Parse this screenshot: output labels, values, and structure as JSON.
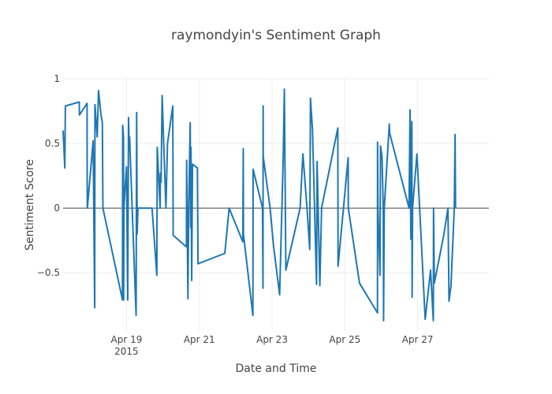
{
  "chart_data": {
    "type": "line",
    "title": "raymondyin's Sentiment Graph",
    "xlabel": "Date and Time",
    "ylabel": "Sentiment Score",
    "x_is_date": true,
    "xlim": [
      "2015-04-17T06:10",
      "2015-04-28T23:00"
    ],
    "ylim": [
      -0.95,
      1.0
    ],
    "x_ticks": [
      {
        "value": "2015-04-19T00:00",
        "label": "Apr 19",
        "sublabel": "2015"
      },
      {
        "value": "2015-04-21T00:00",
        "label": "Apr 21",
        "sublabel": ""
      },
      {
        "value": "2015-04-23T00:00",
        "label": "Apr 23",
        "sublabel": ""
      },
      {
        "value": "2015-04-25T00:00",
        "label": "Apr 25",
        "sublabel": ""
      },
      {
        "value": "2015-04-27T00:00",
        "label": "Apr 27",
        "sublabel": ""
      }
    ],
    "y_ticks": [
      {
        "value": 1,
        "label": "1"
      },
      {
        "value": 0.5,
        "label": "0.5"
      },
      {
        "value": 0,
        "label": "0"
      },
      {
        "value": -0.5,
        "label": "−0.5"
      }
    ],
    "grid": true,
    "series": [
      {
        "name": "",
        "color": "#1f77b4",
        "points": [
          [
            "2015-04-17T06:10",
            0.6
          ],
          [
            "2015-04-17T07:20",
            0.31
          ],
          [
            "2015-04-17T07:40",
            0.79
          ],
          [
            "2015-04-17T16:50",
            0.82
          ],
          [
            "2015-04-17T16:55",
            0.72
          ],
          [
            "2015-04-17T22:00",
            0.81
          ],
          [
            "2015-04-17T22:05",
            0.12
          ],
          [
            "2015-04-17T22:10",
            0.0
          ],
          [
            "2015-04-18T02:00",
            0.52
          ],
          [
            "2015-04-18T03:00",
            -0.77
          ],
          [
            "2015-04-18T03:10",
            0.8
          ],
          [
            "2015-04-18T04:40",
            0.55
          ],
          [
            "2015-04-18T05:30",
            0.91
          ],
          [
            "2015-04-18T07:10",
            0.72
          ],
          [
            "2015-04-18T08:05",
            0.66
          ],
          [
            "2015-04-18T08:25",
            0.0
          ],
          [
            "2015-04-18T21:20",
            -0.71
          ],
          [
            "2015-04-18T21:30",
            0.64
          ],
          [
            "2015-04-18T22:00",
            0.55
          ],
          [
            "2015-04-18T22:05",
            -0.71
          ],
          [
            "2015-04-18T22:20",
            0.0
          ],
          [
            "2015-04-18T23:00",
            0.14
          ],
          [
            "2015-04-19T00:00",
            0.32
          ],
          [
            "2015-04-19T00:50",
            -0.71
          ],
          [
            "2015-04-19T01:20",
            0.7
          ],
          [
            "2015-04-19T01:45",
            0.45
          ],
          [
            "2015-04-19T02:05",
            0.55
          ],
          [
            "2015-04-19T02:30",
            0.4
          ],
          [
            "2015-04-19T06:20",
            -0.83
          ],
          [
            "2015-04-19T06:40",
            0.74
          ],
          [
            "2015-04-19T07:00",
            -0.2
          ],
          [
            "2015-04-19T07:30",
            0.0
          ],
          [
            "2015-04-19T16:50",
            0.0
          ],
          [
            "2015-04-19T20:00",
            -0.52
          ],
          [
            "2015-04-19T20:15",
            0.47
          ],
          [
            "2015-04-19T22:10",
            0.0
          ],
          [
            "2015-04-19T22:20",
            0.27
          ],
          [
            "2015-04-19T22:50",
            0.2
          ],
          [
            "2015-04-19T23:30",
            0.87
          ],
          [
            "2015-04-20T02:00",
            0.0
          ],
          [
            "2015-04-20T03:00",
            0.5
          ],
          [
            "2015-04-20T06:30",
            0.79
          ],
          [
            "2015-04-20T06:45",
            -0.21
          ],
          [
            "2015-04-20T15:30",
            -0.3
          ],
          [
            "2015-04-20T15:40",
            0.37
          ],
          [
            "2015-04-20T16:30",
            -0.7
          ],
          [
            "2015-04-20T17:00",
            0.0
          ],
          [
            "2015-04-20T18:00",
            0.66
          ],
          [
            "2015-04-20T18:20",
            -0.15
          ],
          [
            "2015-04-20T18:30",
            0.47
          ],
          [
            "2015-04-20T19:00",
            -0.56
          ],
          [
            "2015-04-20T19:30",
            0.34
          ],
          [
            "2015-04-20T22:45",
            0.31
          ],
          [
            "2015-04-20T23:10",
            -0.43
          ],
          [
            "2015-04-21T16:50",
            -0.35
          ],
          [
            "2015-04-21T19:40",
            0.0
          ],
          [
            "2015-04-22T04:40",
            -0.26
          ],
          [
            "2015-04-22T05:00",
            0.46
          ],
          [
            "2015-04-22T05:05",
            -0.2
          ],
          [
            "2015-04-22T11:20",
            -0.83
          ],
          [
            "2015-04-22T11:30",
            0.3
          ],
          [
            "2015-04-22T17:40",
            0.0
          ],
          [
            "2015-04-22T18:00",
            -0.62
          ],
          [
            "2015-04-22T18:05",
            0.79
          ],
          [
            "2015-04-22T18:10",
            0.4
          ],
          [
            "2015-04-22T22:40",
            0.0
          ],
          [
            "2015-04-23T01:00",
            -0.3
          ],
          [
            "2015-04-23T05:00",
            -0.67
          ],
          [
            "2015-04-23T07:20",
            0.38
          ],
          [
            "2015-04-23T08:05",
            0.92
          ],
          [
            "2015-04-23T09:05",
            -0.48
          ],
          [
            "2015-04-23T18:30",
            0.0
          ],
          [
            "2015-04-23T20:20",
            0.42
          ],
          [
            "2015-04-23T23:00",
            0.0
          ],
          [
            "2015-04-24T00:50",
            -0.32
          ],
          [
            "2015-04-24T01:20",
            0.85
          ],
          [
            "2015-04-24T02:40",
            0.6
          ],
          [
            "2015-04-24T05:20",
            -0.59
          ],
          [
            "2015-04-24T05:40",
            0.36
          ],
          [
            "2015-04-24T07:30",
            -0.6
          ],
          [
            "2015-04-24T08:40",
            0.0
          ],
          [
            "2015-04-24T19:20",
            0.62
          ],
          [
            "2015-04-24T19:30",
            -0.45
          ],
          [
            "2015-04-25T02:10",
            0.39
          ],
          [
            "2015-04-25T02:15",
            0.0
          ],
          [
            "2015-04-25T09:40",
            -0.58
          ],
          [
            "2015-04-25T21:30",
            -0.81
          ],
          [
            "2015-04-25T21:35",
            0.51
          ],
          [
            "2015-04-25T21:50",
            0.0
          ],
          [
            "2015-04-25T23:10",
            -0.52
          ],
          [
            "2015-04-25T23:30",
            0.48
          ],
          [
            "2015-04-26T00:30",
            0.4
          ],
          [
            "2015-04-26T01:20",
            0.0
          ],
          [
            "2015-04-26T01:30",
            -0.87
          ],
          [
            "2015-04-26T02:00",
            0.0
          ],
          [
            "2015-04-26T05:20",
            0.65
          ],
          [
            "2015-04-26T05:30",
            0.58
          ],
          [
            "2015-04-26T18:20",
            0.0
          ],
          [
            "2015-04-26T19:00",
            0.76
          ],
          [
            "2015-04-26T19:30",
            -0.24
          ],
          [
            "2015-04-26T20:10",
            0.67
          ],
          [
            "2015-04-26T20:20",
            -0.69
          ],
          [
            "2015-04-26T20:40",
            0.0
          ],
          [
            "2015-04-26T23:30",
            0.42
          ],
          [
            "2015-04-27T05:00",
            -0.86
          ],
          [
            "2015-04-27T08:30",
            -0.48
          ],
          [
            "2015-04-27T10:20",
            -0.87
          ],
          [
            "2015-04-27T10:30",
            0.0
          ],
          [
            "2015-04-27T11:00",
            -0.58
          ],
          [
            "2015-04-27T17:20",
            -0.2
          ],
          [
            "2015-04-27T20:00",
            0.0
          ],
          [
            "2015-04-27T20:40",
            -0.72
          ],
          [
            "2015-04-27T22:00",
            -0.6
          ],
          [
            "2015-04-28T00:10",
            0.0
          ],
          [
            "2015-04-28T00:40",
            0.57
          ],
          [
            "2015-04-28T01:00",
            0.0
          ]
        ]
      }
    ]
  }
}
